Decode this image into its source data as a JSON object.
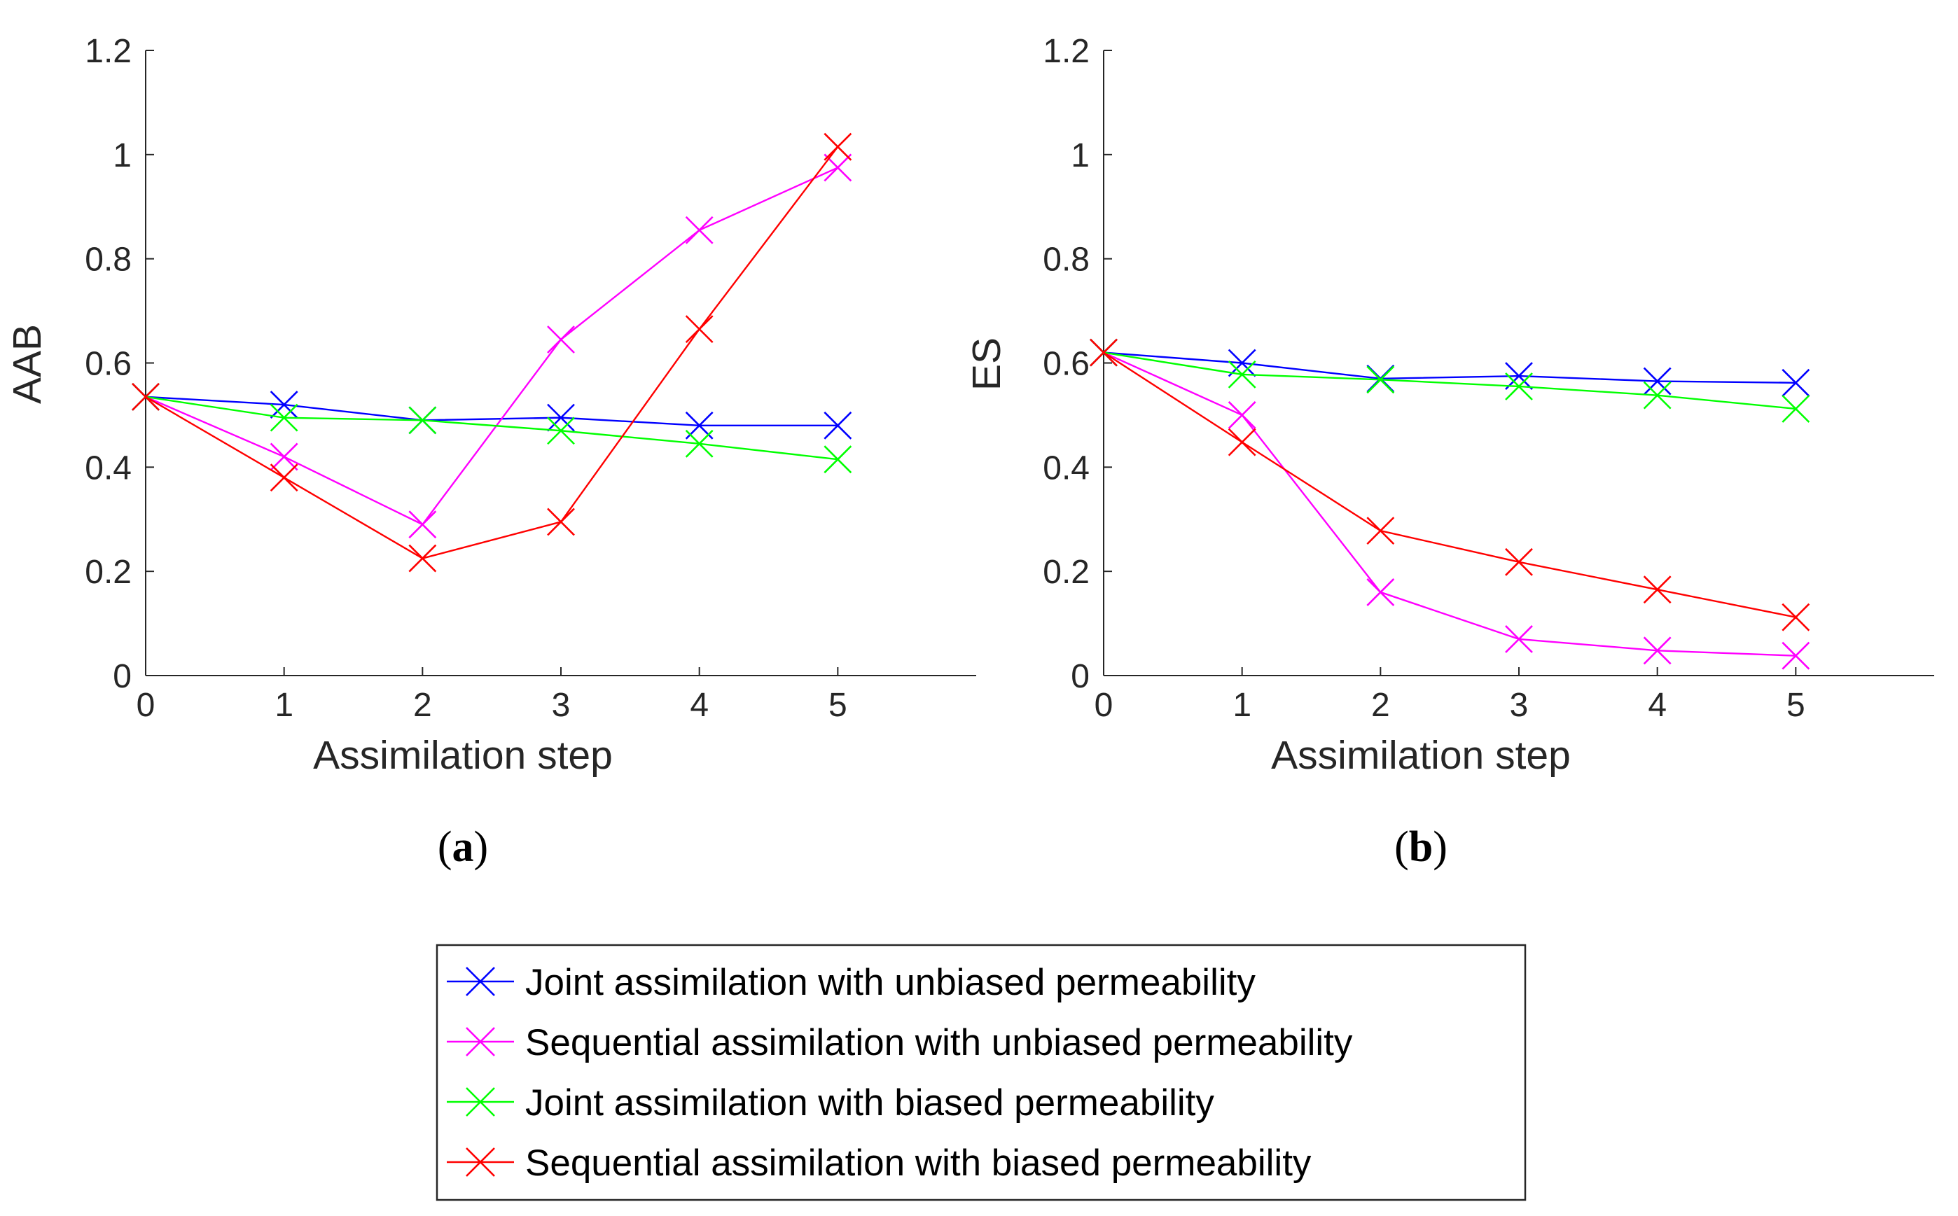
{
  "chart_data": [
    {
      "type": "line",
      "panel_label_prefix": "(",
      "panel_letter": "a",
      "panel_label_suffix": ")",
      "xlabel": "Assimilation step",
      "ylabel": "AAB",
      "xlim": [
        0,
        6
      ],
      "ylim": [
        0,
        1.2
      ],
      "xticks": [
        "0",
        "1",
        "2",
        "3",
        "4",
        "5"
      ],
      "yticks": [
        "0",
        "0.2",
        "0.4",
        "0.6",
        "0.8",
        "1",
        "1.2"
      ],
      "x": [
        0,
        1,
        2,
        3,
        4,
        5
      ],
      "grid": false,
      "series": [
        {
          "name": "Joint assimilation with unbiased permeability",
          "color": "#0000ff",
          "values": [
            0.535,
            0.52,
            0.49,
            0.495,
            0.48,
            0.48
          ]
        },
        {
          "name": "Sequential assimilation with unbiased permeability",
          "color": "#ff00ff",
          "values": [
            0.535,
            0.42,
            0.29,
            0.645,
            0.855,
            0.975
          ]
        },
        {
          "name": "Joint assimilation with biased permeability",
          "color": "#00ff00",
          "values": [
            0.535,
            0.495,
            0.49,
            0.47,
            0.445,
            0.415
          ]
        },
        {
          "name": "Sequential assimilation with biased permeability",
          "color": "#ff0000",
          "values": [
            0.535,
            0.38,
            0.225,
            0.295,
            0.665,
            1.015
          ]
        }
      ]
    },
    {
      "type": "line",
      "panel_label_prefix": "(",
      "panel_letter": "b",
      "panel_label_suffix": ")",
      "xlabel": "Assimilation step",
      "ylabel": "ES",
      "xlim": [
        0,
        6
      ],
      "ylim": [
        0,
        1.2
      ],
      "xticks": [
        "0",
        "1",
        "2",
        "3",
        "4",
        "5"
      ],
      "yticks": [
        "0",
        "0.2",
        "0.4",
        "0.6",
        "0.8",
        "1",
        "1.2"
      ],
      "x": [
        0,
        1,
        2,
        3,
        4,
        5
      ],
      "grid": false,
      "series": [
        {
          "name": "Joint assimilation with unbiased permeability",
          "color": "#0000ff",
          "values": [
            0.62,
            0.6,
            0.57,
            0.575,
            0.565,
            0.562
          ]
        },
        {
          "name": "Sequential assimilation with unbiased permeability",
          "color": "#ff00ff",
          "values": [
            0.62,
            0.5,
            0.16,
            0.07,
            0.048,
            0.038
          ]
        },
        {
          "name": "Joint assimilation with biased permeability",
          "color": "#00ff00",
          "values": [
            0.62,
            0.578,
            0.568,
            0.555,
            0.538,
            0.512
          ]
        },
        {
          "name": "Sequential assimilation with biased permeability",
          "color": "#ff0000",
          "values": [
            0.62,
            0.448,
            0.278,
            0.218,
            0.165,
            0.112
          ]
        }
      ]
    }
  ],
  "legend": {
    "placement": "bottom-center",
    "entries": [
      {
        "label": "Joint assimilation with unbiased permeability",
        "color": "#0000ff"
      },
      {
        "label": "Sequential assimilation with unbiased permeability",
        "color": "#ff00ff"
      },
      {
        "label": "Joint assimilation with biased permeability",
        "color": "#00ff00"
      },
      {
        "label": "Sequential assimilation with biased permeability",
        "color": "#ff0000"
      }
    ]
  }
}
